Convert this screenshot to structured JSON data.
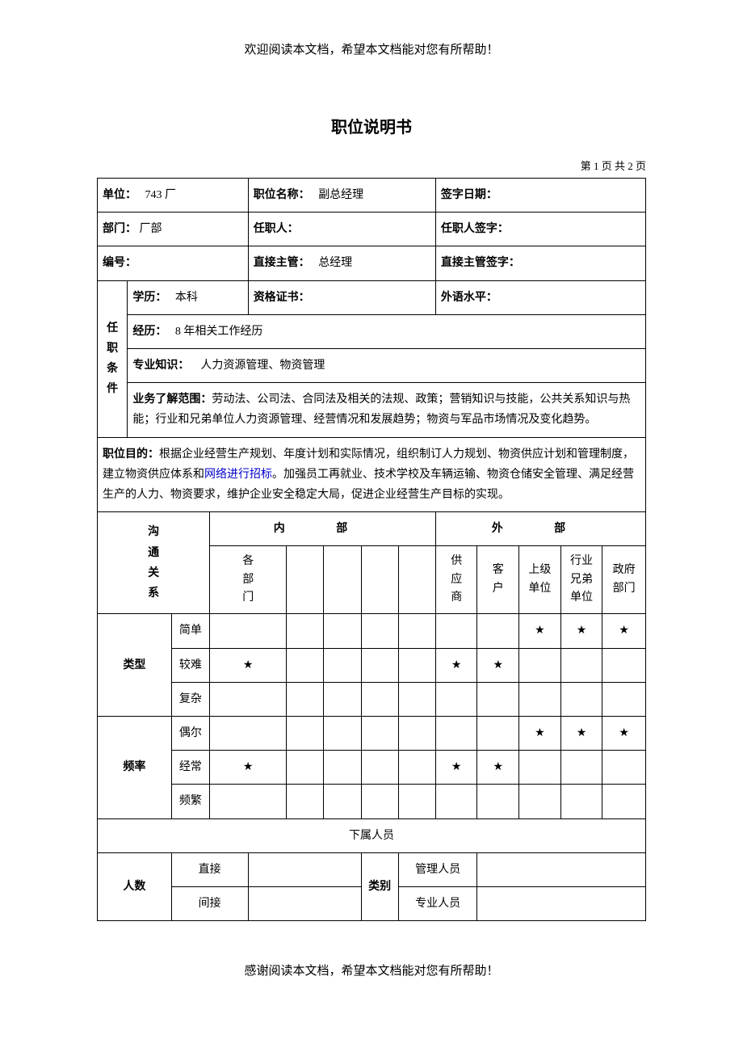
{
  "header_note": "欢迎阅读本文档，希望本文档能对您有所帮助！",
  "footer_note": "感谢阅读本文档，希望本文档能对您有所帮助！",
  "doc_title": "职位说明书",
  "page_info": "第 1 页   共 2 页",
  "row1": {
    "unit_label": "单位：",
    "unit_value": "743 厂",
    "pos_label": "职位名称：",
    "pos_value": "副总经理",
    "sign_date_label": "签字日期："
  },
  "row2": {
    "dept_label": "部门：",
    "dept_value": "厂部",
    "incumbent_label": "任职人：",
    "incumbent_sign_label": "任职人签字："
  },
  "row3": {
    "code_label": "编号：",
    "supervisor_label": "直接主管：",
    "supervisor_value": "总经理",
    "supervisor_sign_label": "直接主管签字："
  },
  "qualifications": {
    "section_label": "任 职 条 件",
    "edu_label": "学历：",
    "edu_value": "本科",
    "cert_label": "资格证书：",
    "lang_label": "外语水平：",
    "exp_label": "经历：",
    "exp_value": "8 年相关工作经历",
    "knowledge_label": "专业知识：",
    "knowledge_value": "人力资源管理、物资管理",
    "scope_label": "业务了解范围：",
    "scope_value": "劳动法、公司法、合同法及相关的法规、政策；营销知识与技能，公共关系知识与热能；行业和兄弟单位人力资源管理、经营情况和发展趋势；物资与军品市场情况及变化趋势。"
  },
  "objective": {
    "label": "职位目的：",
    "text_before_link": "根据企业经营生产规划、年度计划和实际情况，组织制订人力规划、物资供应计划和管理制度，建立物资供应体系和",
    "link_text": "网络进行招标",
    "text_after_link": "。加强员工再就业、技术学校及车辆运输、物资仓储安全管理、满足经营生产的人力、物资要求，维护企业安全稳定大局，促进企业经营生产目标的实现。"
  },
  "comm": {
    "section_label": "沟 通 关 系",
    "internal_label": "内   部",
    "external_label": "外   部",
    "internal_cols": [
      "各 部 门",
      "",
      "",
      "",
      ""
    ],
    "external_cols": [
      "供 应 商",
      "客 户",
      "上级 单位",
      "行业 兄弟 单位",
      "政府 部门"
    ],
    "type_label": "类型",
    "type_rows": [
      {
        "label": "简单",
        "marks": [
          "",
          "",
          "",
          "",
          "",
          "",
          "",
          "★",
          "★",
          "★"
        ]
      },
      {
        "label": "较难",
        "marks": [
          "★",
          "",
          "",
          "",
          "",
          "★",
          "★",
          "",
          "",
          ""
        ]
      },
      {
        "label": "复杂",
        "marks": [
          "",
          "",
          "",
          "",
          "",
          "",
          "",
          "",
          "",
          ""
        ]
      }
    ],
    "freq_label": "频率",
    "freq_rows": [
      {
        "label": "偶尔",
        "marks": [
          "",
          "",
          "",
          "",
          "",
          "",
          "",
          "★",
          "★",
          "★"
        ]
      },
      {
        "label": "经常",
        "marks": [
          "★",
          "",
          "",
          "",
          "",
          "★",
          "★",
          "",
          "",
          ""
        ]
      },
      {
        "label": "频繁",
        "marks": [
          "",
          "",
          "",
          "",
          "",
          "",
          "",
          "",
          "",
          ""
        ]
      }
    ]
  },
  "subordinates": {
    "header": "下属人员",
    "count_label": "人数",
    "direct_label": "直接",
    "indirect_label": "间接",
    "category_label": "类别",
    "mgmt_label": "管理人员",
    "prof_label": "专业人员"
  },
  "star": "★"
}
